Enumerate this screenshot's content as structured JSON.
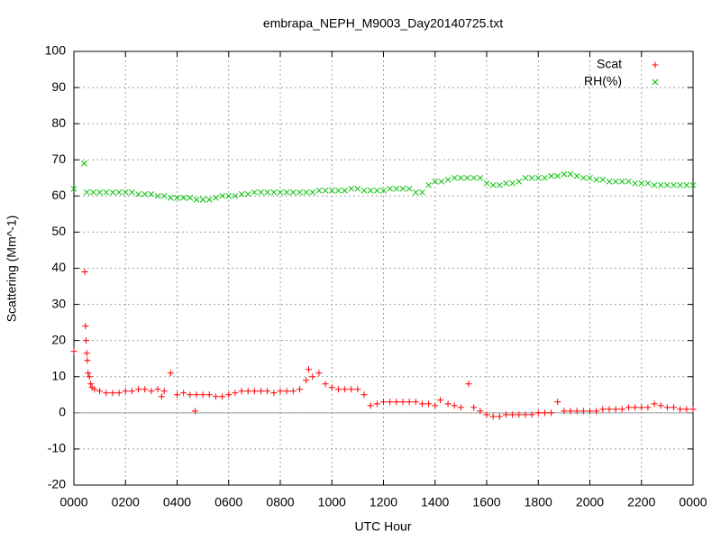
{
  "chart_data": {
    "type": "scatter",
    "title": "embrapa_NEPH_M9003_Day20140725.txt",
    "xlabel": "UTC Hour",
    "ylabel": "Scattering (Mm^-1)",
    "xlim": [
      0,
      24
    ],
    "ylim": [
      -20,
      100
    ],
    "xticks": [
      {
        "value": 0,
        "label": "0000"
      },
      {
        "value": 2,
        "label": "0200"
      },
      {
        "value": 4,
        "label": "0400"
      },
      {
        "value": 6,
        "label": "0600"
      },
      {
        "value": 8,
        "label": "0800"
      },
      {
        "value": 10,
        "label": "1000"
      },
      {
        "value": 12,
        "label": "1200"
      },
      {
        "value": 14,
        "label": "1400"
      },
      {
        "value": 16,
        "label": "1600"
      },
      {
        "value": 18,
        "label": "1800"
      },
      {
        "value": 20,
        "label": "2000"
      },
      {
        "value": 22,
        "label": "2200"
      },
      {
        "value": 24,
        "label": "0000"
      }
    ],
    "yticks": [
      -20,
      -10,
      0,
      10,
      20,
      30,
      40,
      50,
      60,
      70,
      80,
      90,
      100
    ],
    "grid": true,
    "legend": "top-right",
    "series": [
      {
        "name": "Scat",
        "color": "#ff0000",
        "marker": "plus",
        "x": [
          0,
          0.42,
          0.45,
          0.47,
          0.5,
          0.52,
          0.55,
          0.6,
          0.65,
          0.7,
          0.8,
          1.0,
          1.25,
          1.5,
          1.75,
          2.0,
          2.25,
          2.5,
          2.75,
          3.0,
          3.25,
          3.4,
          3.5,
          3.75,
          4.0,
          4.25,
          4.5,
          4.7,
          4.75,
          5.0,
          5.25,
          5.5,
          5.75,
          6.0,
          6.25,
          6.5,
          6.75,
          7.0,
          7.25,
          7.5,
          7.75,
          8.0,
          8.25,
          8.5,
          8.75,
          9.0,
          9.1,
          9.25,
          9.5,
          9.75,
          10.0,
          10.25,
          10.5,
          10.75,
          11.0,
          11.25,
          11.5,
          11.75,
          12.0,
          12.25,
          12.5,
          12.75,
          13.0,
          13.25,
          13.5,
          13.75,
          14.0,
          14.2,
          14.5,
          14.75,
          15.0,
          15.3,
          15.5,
          15.75,
          16.0,
          16.25,
          16.5,
          16.75,
          17.0,
          17.25,
          17.5,
          17.75,
          18.0,
          18.25,
          18.5,
          18.75,
          19.0,
          19.25,
          19.5,
          19.75,
          20.0,
          20.25,
          20.5,
          20.75,
          21.0,
          21.25,
          21.5,
          21.75,
          22.0,
          22.25,
          22.5,
          22.75,
          23.0,
          23.25,
          23.5,
          23.75,
          24.0
        ],
        "values": [
          17,
          39,
          24,
          20,
          16.5,
          14.5,
          11,
          10,
          8,
          7,
          6.5,
          6,
          5.5,
          5.5,
          5.5,
          6,
          6,
          6.5,
          6.5,
          6,
          6.5,
          4.5,
          6,
          11,
          5,
          5.5,
          5,
          0.5,
          5,
          5,
          5,
          4.5,
          4.5,
          5,
          5.5,
          6,
          6,
          6,
          6,
          6,
          5.5,
          6,
          6,
          6,
          6.5,
          9,
          12,
          10,
          11,
          8,
          7,
          6.5,
          6.5,
          6.5,
          6.5,
          5,
          2,
          2.5,
          3,
          3,
          3,
          3,
          3,
          3,
          2.5,
          2.5,
          2,
          3.5,
          2.5,
          2,
          1.5,
          8,
          1.5,
          0.5,
          -0.5,
          -1,
          -1,
          -0.5,
          -0.5,
          -0.5,
          -0.5,
          -0.5,
          0,
          0,
          0,
          3,
          0.5,
          0.5,
          0.5,
          0.5,
          0.5,
          0.5,
          1,
          1,
          1,
          1,
          1.5,
          1.5,
          1.5,
          1.5,
          2.5,
          2,
          1.5,
          1.5,
          1,
          1,
          1
        ]
      },
      {
        "name": "RH(%)",
        "color": "#00c000",
        "marker": "cross",
        "x": [
          0,
          0.4,
          0.5,
          0.75,
          1,
          1.25,
          1.5,
          1.75,
          2,
          2.25,
          2.5,
          2.75,
          3,
          3.25,
          3.5,
          3.75,
          4,
          4.25,
          4.5,
          4.75,
          5,
          5.25,
          5.5,
          5.75,
          6,
          6.25,
          6.5,
          6.75,
          7,
          7.25,
          7.5,
          7.75,
          8,
          8.25,
          8.5,
          8.75,
          9,
          9.25,
          9.5,
          9.75,
          10,
          10.25,
          10.5,
          10.75,
          11,
          11.25,
          11.5,
          11.75,
          12,
          12.25,
          12.5,
          12.75,
          13,
          13.25,
          13.5,
          13.75,
          14,
          14.25,
          14.5,
          14.75,
          15,
          15.25,
          15.5,
          15.75,
          16,
          16.25,
          16.5,
          16.75,
          17,
          17.25,
          17.5,
          17.75,
          18,
          18.25,
          18.5,
          18.75,
          19,
          19.25,
          19.5,
          19.75,
          20,
          20.25,
          20.5,
          20.75,
          21,
          21.25,
          21.5,
          21.75,
          22,
          22.25,
          22.5,
          22.75,
          23,
          23.25,
          23.5,
          23.75,
          24
        ],
        "values": [
          62,
          69,
          61,
          61,
          61,
          61,
          61,
          61,
          61,
          61,
          60.5,
          60.5,
          60.5,
          60,
          60,
          59.5,
          59.5,
          59.5,
          59.5,
          59,
          59,
          59,
          59.5,
          60,
          60,
          60,
          60.5,
          60.5,
          61,
          61,
          61,
          61,
          61,
          61,
          61,
          61,
          61,
          61,
          61.5,
          61.5,
          61.5,
          61.5,
          61.5,
          62,
          62,
          61.5,
          61.5,
          61.5,
          61.5,
          62,
          62,
          62,
          62,
          61,
          61,
          63,
          64,
          64,
          64.5,
          65,
          65,
          65,
          65,
          65,
          63.5,
          63,
          63,
          63.5,
          63.5,
          64,
          65,
          65,
          65,
          65,
          65.5,
          65.5,
          66,
          66,
          65.5,
          65,
          65,
          64.5,
          64.5,
          64,
          64,
          64,
          64,
          63.5,
          63.5,
          63.5,
          63,
          63,
          63,
          63,
          63,
          63,
          63
        ]
      }
    ]
  }
}
